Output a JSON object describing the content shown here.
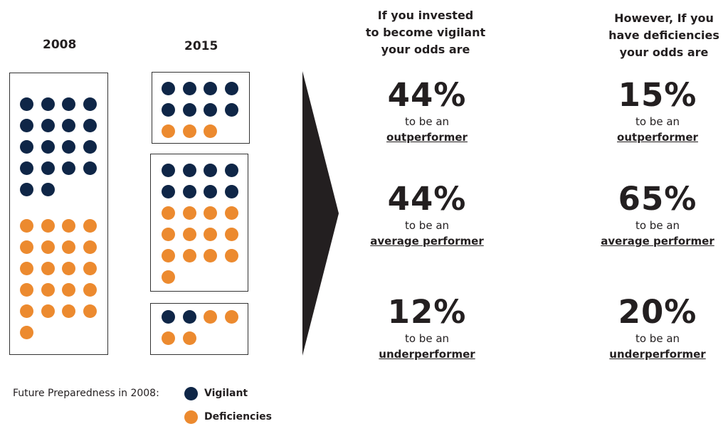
{
  "colors": {
    "vigilant": "#0f2647",
    "deficiencies": "#ec8a2f",
    "arrow": "#231f20",
    "box_border": "#333333"
  },
  "years": {
    "left": "2008",
    "right": "2015"
  },
  "chart_data": {
    "type": "dot-matrix",
    "groups": [
      {
        "year": "2008",
        "boxes": [
          {
            "vigilant": 18,
            "deficiencies": 21
          }
        ]
      },
      {
        "year": "2015",
        "boxes": [
          {
            "vigilant": 8,
            "deficiencies": 3
          },
          {
            "vigilant": 8,
            "deficiencies": 13
          },
          {
            "vigilant": 2,
            "deficiencies": 4
          }
        ]
      }
    ]
  },
  "columns": [
    {
      "heading": [
        "If you invested",
        "to become vigilant",
        "your odds are"
      ],
      "stats": [
        {
          "pct": "44%",
          "prefix": "to be an",
          "label": "outperformer"
        },
        {
          "pct": "44%",
          "prefix": "to be an",
          "label": "average performer"
        },
        {
          "pct": "12%",
          "prefix": "to be an",
          "label": "underperformer"
        }
      ]
    },
    {
      "heading": [
        "However, If you",
        "have deficiencies",
        "your odds are"
      ],
      "stats": [
        {
          "pct": "15%",
          "prefix": "to be an",
          "label": "outperformer"
        },
        {
          "pct": "65%",
          "prefix": "to be an",
          "label": "average performer"
        },
        {
          "pct": "20%",
          "prefix": "to be an",
          "label": "underperformer"
        }
      ]
    }
  ],
  "legend": {
    "title": "Future Preparedness in 2008:",
    "vigilant": "Vigilant",
    "deficiencies": "Deficiencies"
  }
}
